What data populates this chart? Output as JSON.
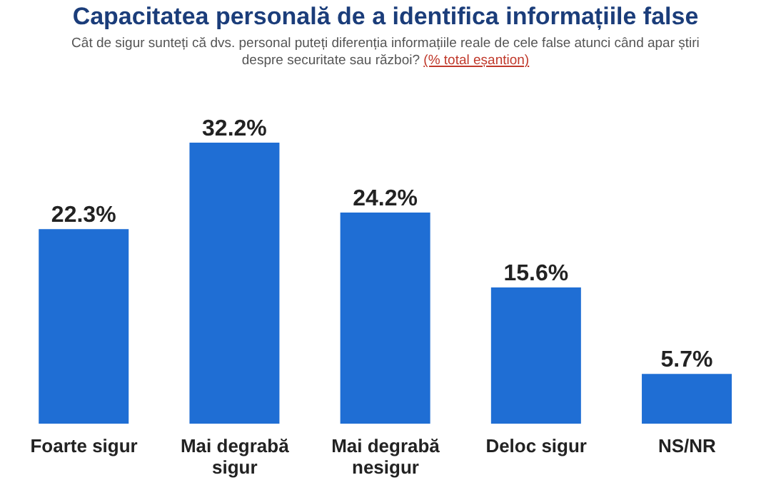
{
  "chart_data": {
    "type": "bar",
    "title": "Capacitatea personală de a identifica informațiile false",
    "subtitle": "Cât de sigur sunteți că dvs. personal puteți diferenția informațiile reale de cele false atunci când apar știri despre securitate sau război?",
    "annotations": [
      "(% total eșantion)"
    ],
    "categories": [
      "Foarte sigur",
      "Mai degrabă sigur",
      "Mai degrabă nesigur",
      "Deloc sigur",
      "NS/NR"
    ],
    "values": [
      22.3,
      32.2,
      24.2,
      15.6,
      5.7
    ],
    "value_labels": [
      "22.3%",
      "32.2%",
      "24.2%",
      "15.6%",
      "5.7%"
    ],
    "color": "#1f6ed4",
    "grid": false
  }
}
